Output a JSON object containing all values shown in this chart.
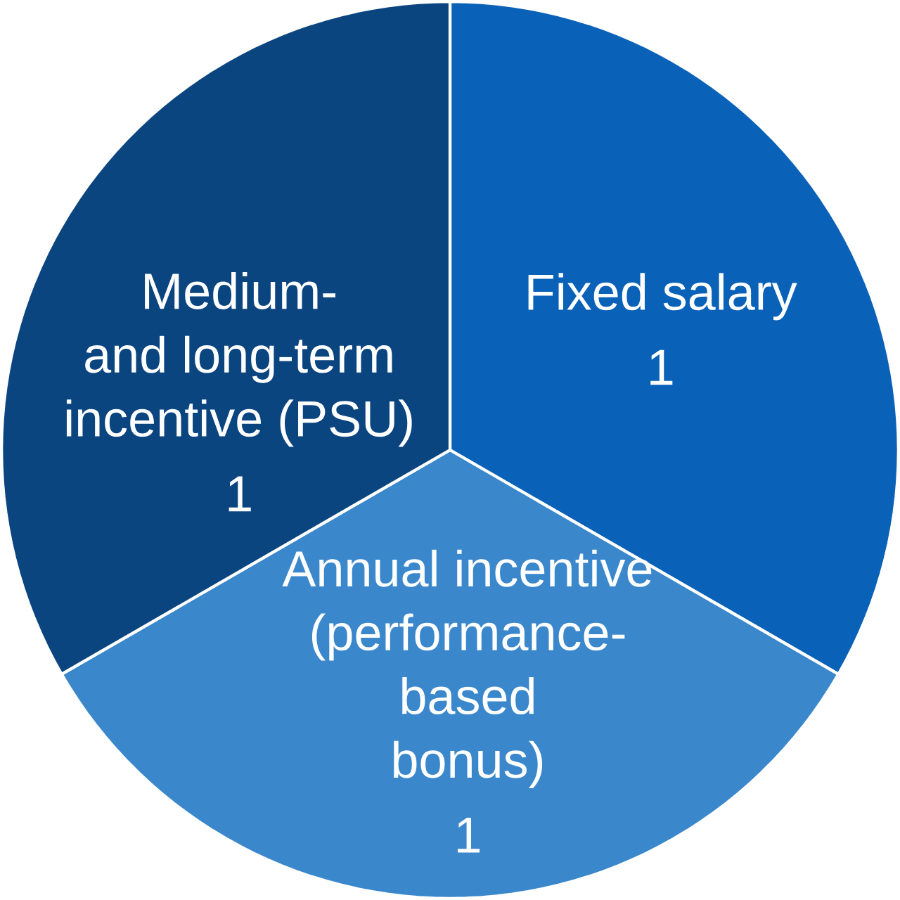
{
  "chart_data": {
    "type": "pie",
    "categories": [
      "Fixed salary",
      "Annual incentive (performance-based bonus)",
      "Medium- and long-term incentive (PSU)"
    ],
    "values": [
      1,
      1,
      1
    ],
    "value_labels": [
      "1",
      "1",
      "1"
    ],
    "colors": [
      "#0a62b8",
      "#3a87cc",
      "#0b4580"
    ]
  }
}
